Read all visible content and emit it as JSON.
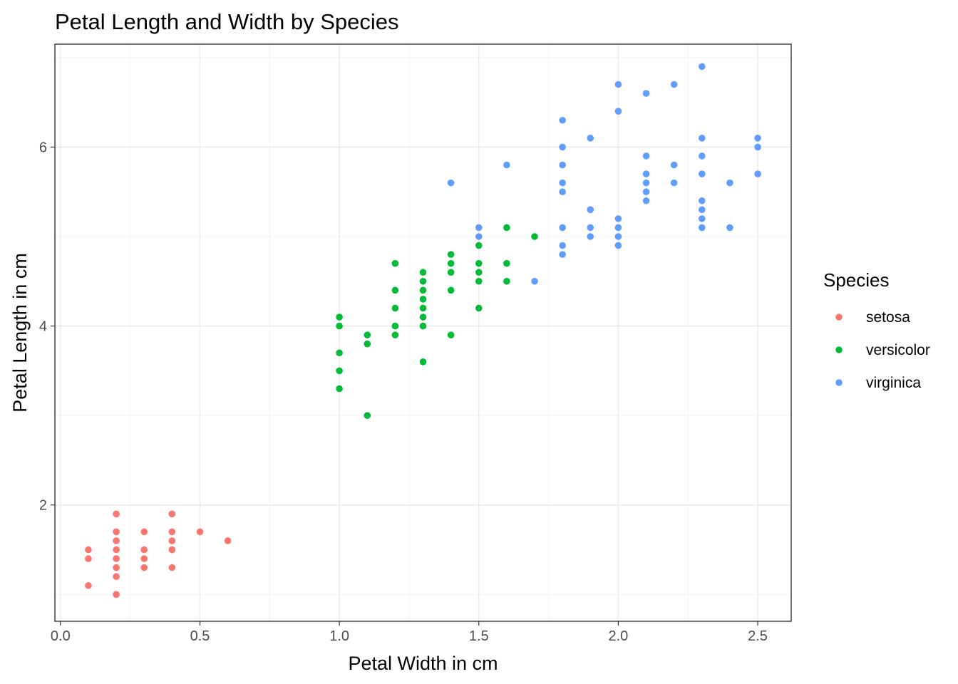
{
  "chart_data": {
    "type": "scatter",
    "title": "Petal Length and Width by Species",
    "xlabel": "Petal Width in cm",
    "ylabel": "Petal Length in cm",
    "xlim": [
      -0.02,
      2.62
    ],
    "ylim": [
      0.7,
      7.15
    ],
    "x_ticks": [
      0.0,
      0.5,
      1.0,
      1.5,
      2.0,
      2.5
    ],
    "x_tick_labels": [
      "0.0",
      "0.5",
      "1.0",
      "1.5",
      "2.0",
      "2.5"
    ],
    "y_ticks": [
      2,
      4,
      6
    ],
    "y_tick_labels": [
      "2",
      "4",
      "6"
    ],
    "grid": true,
    "legend": {
      "title": "Species",
      "position": "right"
    },
    "series": [
      {
        "name": "setosa",
        "color": "#F8766D",
        "points": [
          [
            0.1,
            1.1
          ],
          [
            0.1,
            1.4
          ],
          [
            0.1,
            1.5
          ],
          [
            0.2,
            1.0
          ],
          [
            0.2,
            1.2
          ],
          [
            0.2,
            1.3
          ],
          [
            0.2,
            1.4
          ],
          [
            0.2,
            1.5
          ],
          [
            0.2,
            1.6
          ],
          [
            0.2,
            1.7
          ],
          [
            0.2,
            1.9
          ],
          [
            0.3,
            1.3
          ],
          [
            0.3,
            1.4
          ],
          [
            0.3,
            1.5
          ],
          [
            0.3,
            1.7
          ],
          [
            0.4,
            1.3
          ],
          [
            0.4,
            1.5
          ],
          [
            0.4,
            1.6
          ],
          [
            0.4,
            1.7
          ],
          [
            0.4,
            1.9
          ],
          [
            0.5,
            1.7
          ],
          [
            0.6,
            1.6
          ]
        ]
      },
      {
        "name": "versicolor",
        "color": "#00BA38",
        "points": [
          [
            1.0,
            3.3
          ],
          [
            1.0,
            3.5
          ],
          [
            1.0,
            3.7
          ],
          [
            1.0,
            4.0
          ],
          [
            1.0,
            4.1
          ],
          [
            1.1,
            3.0
          ],
          [
            1.1,
            3.8
          ],
          [
            1.1,
            3.9
          ],
          [
            1.2,
            3.9
          ],
          [
            1.2,
            4.0
          ],
          [
            1.2,
            4.2
          ],
          [
            1.2,
            4.4
          ],
          [
            1.2,
            4.7
          ],
          [
            1.3,
            3.6
          ],
          [
            1.3,
            4.0
          ],
          [
            1.3,
            4.1
          ],
          [
            1.3,
            4.2
          ],
          [
            1.3,
            4.3
          ],
          [
            1.3,
            4.4
          ],
          [
            1.3,
            4.5
          ],
          [
            1.3,
            4.6
          ],
          [
            1.4,
            3.9
          ],
          [
            1.4,
            4.4
          ],
          [
            1.4,
            4.6
          ],
          [
            1.4,
            4.7
          ],
          [
            1.4,
            4.8
          ],
          [
            1.5,
            4.2
          ],
          [
            1.5,
            4.5
          ],
          [
            1.5,
            4.6
          ],
          [
            1.5,
            4.7
          ],
          [
            1.5,
            4.9
          ],
          [
            1.6,
            4.5
          ],
          [
            1.6,
            4.7
          ],
          [
            1.6,
            5.1
          ],
          [
            1.7,
            5.0
          ]
        ]
      },
      {
        "name": "virginica",
        "color": "#619CFF",
        "points": [
          [
            1.4,
            5.6
          ],
          [
            1.5,
            5.0
          ],
          [
            1.5,
            5.1
          ],
          [
            1.6,
            5.8
          ],
          [
            1.7,
            4.5
          ],
          [
            1.8,
            4.8
          ],
          [
            1.8,
            4.9
          ],
          [
            1.8,
            5.1
          ],
          [
            1.8,
            5.5
          ],
          [
            1.8,
            5.6
          ],
          [
            1.8,
            5.8
          ],
          [
            1.8,
            6.0
          ],
          [
            1.8,
            6.3
          ],
          [
            1.9,
            5.0
          ],
          [
            1.9,
            5.1
          ],
          [
            1.9,
            5.3
          ],
          [
            1.9,
            6.1
          ],
          [
            2.0,
            4.9
          ],
          [
            2.0,
            5.0
          ],
          [
            2.0,
            5.1
          ],
          [
            2.0,
            5.2
          ],
          [
            2.0,
            6.4
          ],
          [
            2.0,
            6.7
          ],
          [
            2.1,
            5.4
          ],
          [
            2.1,
            5.5
          ],
          [
            2.1,
            5.6
          ],
          [
            2.1,
            5.7
          ],
          [
            2.1,
            5.9
          ],
          [
            2.1,
            6.6
          ],
          [
            2.2,
            5.6
          ],
          [
            2.2,
            5.8
          ],
          [
            2.2,
            6.7
          ],
          [
            2.3,
            5.1
          ],
          [
            2.3,
            5.2
          ],
          [
            2.3,
            5.3
          ],
          [
            2.3,
            5.4
          ],
          [
            2.3,
            5.7
          ],
          [
            2.3,
            5.9
          ],
          [
            2.3,
            6.1
          ],
          [
            2.3,
            6.9
          ],
          [
            2.4,
            5.1
          ],
          [
            2.4,
            5.6
          ],
          [
            2.5,
            5.7
          ],
          [
            2.5,
            6.0
          ],
          [
            2.5,
            6.1
          ]
        ]
      }
    ]
  }
}
